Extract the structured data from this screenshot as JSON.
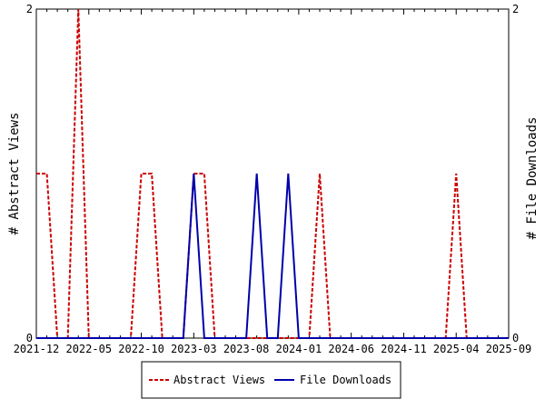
{
  "chart_data": {
    "type": "line",
    "title": "",
    "ylabel": "# Abstract Views",
    "y2label": "# File Downloads",
    "ylim": [
      0,
      2
    ],
    "y2lim": [
      0,
      2
    ],
    "y_ticks": [
      "0",
      "2"
    ],
    "y2_ticks": [
      "0",
      "2"
    ],
    "x_tick_labels": [
      "2021-12",
      "2022-05",
      "2022-10",
      "2023-03",
      "2023-08",
      "2024-01",
      "2024-06",
      "2024-11",
      "2025-04",
      "2025-09"
    ],
    "x": [
      "2021-12",
      "2022-01",
      "2022-02",
      "2022-03",
      "2022-04",
      "2022-05",
      "2022-06",
      "2022-07",
      "2022-08",
      "2022-09",
      "2022-10",
      "2022-11",
      "2022-12",
      "2023-01",
      "2023-02",
      "2023-03",
      "2023-04",
      "2023-05",
      "2023-06",
      "2023-07",
      "2023-08",
      "2023-09",
      "2023-10",
      "2023-11",
      "2023-12",
      "2024-01",
      "2024-02",
      "2024-03",
      "2024-04",
      "2024-05",
      "2024-06",
      "2024-07",
      "2024-08",
      "2024-09",
      "2024-10",
      "2024-11",
      "2024-12",
      "2025-01",
      "2025-02",
      "2025-03",
      "2025-04",
      "2025-05",
      "2025-06",
      "2025-07",
      "2025-08",
      "2025-09"
    ],
    "series": [
      {
        "name": "Abstract Views",
        "color": "#cc0000",
        "dash": "dashed",
        "axis": "left",
        "values": [
          1,
          1,
          0,
          0,
          2,
          0,
          0,
          0,
          0,
          0,
          1,
          1,
          0,
          0,
          0,
          1,
          1,
          0,
          0,
          0,
          0,
          0,
          0,
          0,
          0,
          0,
          0,
          1,
          0,
          0,
          0,
          0,
          0,
          0,
          0,
          0,
          0,
          0,
          0,
          0,
          1,
          0,
          0,
          0,
          0,
          0
        ]
      },
      {
        "name": "File Downloads",
        "color": "#0000aa",
        "dash": "solid",
        "axis": "right",
        "values": [
          0,
          0,
          0,
          0,
          0,
          0,
          0,
          0,
          0,
          0,
          0,
          0,
          0,
          0,
          0,
          1,
          0,
          0,
          0,
          0,
          0,
          1,
          0,
          0,
          1,
          0,
          0,
          0,
          0,
          0,
          0,
          0,
          0,
          0,
          0,
          0,
          0,
          0,
          0,
          0,
          0,
          0,
          0,
          0,
          0,
          0
        ]
      }
    ],
    "grid": false,
    "legend_position": "bottom"
  }
}
